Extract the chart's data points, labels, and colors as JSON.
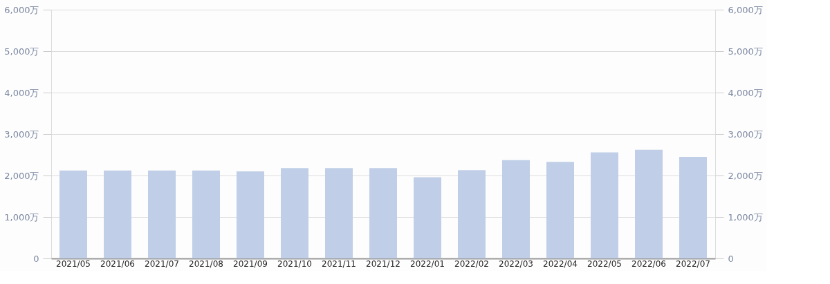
{
  "chart_data": {
    "type": "bar",
    "categories": [
      "2021/05",
      "2021/06",
      "2021/07",
      "2021/08",
      "2021/09",
      "2021/10",
      "2021/11",
      "2021/12",
      "2022/01",
      "2022/02",
      "2022/03",
      "2022/04",
      "2022/05",
      "2022/06",
      "2022/07"
    ],
    "series": [
      {
        "color": "#c0cfe7",
        "values": [
          2120,
          2120,
          2120,
          2120,
          2100,
          2180,
          2180,
          2180,
          1960,
          2130,
          2370,
          2330,
          2560,
          2620,
          2450
        ]
      }
    ],
    "ylim": [
      0,
      6000
    ],
    "yticks": [
      0,
      {
        "value": 1000,
        "label": "1,000万"
      },
      {
        "value": 2000,
        "label": "2,000万"
      },
      {
        "value": 3000,
        "label": "3,000万"
      },
      {
        "value": 4000,
        "label": "4,000万"
      },
      {
        "value": 5000,
        "label": "5,000万"
      },
      {
        "value": 6000,
        "label": "6,000万"
      }
    ],
    "y2lim": [
      0,
      6000
    ],
    "y2ticks": [
      0,
      {
        "value": 1000,
        "label": "1,000万"
      },
      {
        "value": 2000,
        "label": "2,000万"
      },
      {
        "value": 3000,
        "label": "3,000万"
      },
      {
        "value": 4000,
        "label": "4,000万"
      },
      {
        "value": 5000,
        "label": "5,000万"
      },
      {
        "value": 6000,
        "label": "6,000万"
      }
    ],
    "grid": "y"
  }
}
